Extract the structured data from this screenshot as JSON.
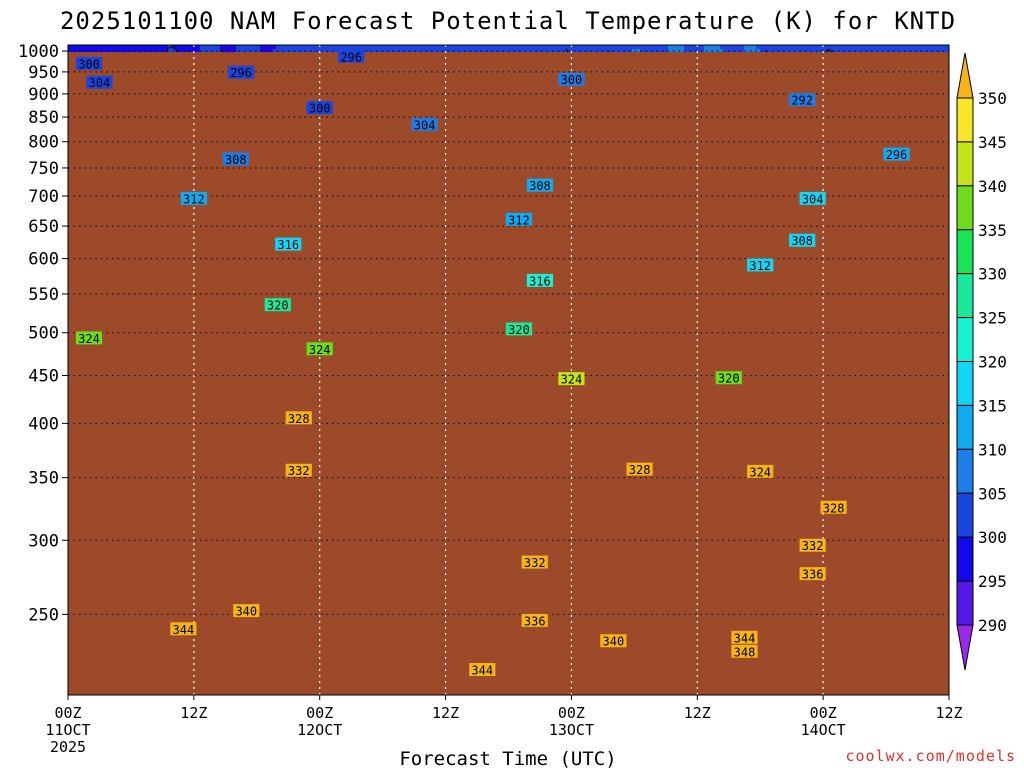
{
  "chart_data": {
    "type": "heatmap",
    "title": "2025101100 NAM Forecast Potential Temperature (K) for KNTD",
    "xlabel": "Forecast Time (UTC)",
    "ylabel": "",
    "units": "K",
    "y_scale": "log-pressure",
    "y_ticks": [
      250,
      300,
      350,
      400,
      450,
      500,
      550,
      600,
      650,
      700,
      750,
      800,
      850,
      900,
      950,
      1000
    ],
    "y_range": [
      1015,
      205
    ],
    "x_range": [
      0,
      84
    ],
    "x_ticks": [
      {
        "x": 0,
        "label": [
          "00Z",
          "11OCT",
          "2025"
        ]
      },
      {
        "x": 12,
        "label": [
          "12Z"
        ]
      },
      {
        "x": 24,
        "label": [
          "00Z",
          "12OCT"
        ]
      },
      {
        "x": 36,
        "label": [
          "12Z"
        ]
      },
      {
        "x": 48,
        "label": [
          "00Z",
          "13OCT"
        ]
      },
      {
        "x": 60,
        "label": [
          "12Z"
        ]
      },
      {
        "x": 72,
        "label": [
          "00Z",
          "14OCT"
        ]
      },
      {
        "x": 84,
        "label": [
          "12Z"
        ]
      }
    ],
    "grid": true,
    "colorbar": {
      "labels": [
        "290",
        "295",
        "300",
        "305",
        "310",
        "315",
        "320",
        "325",
        "330",
        "335",
        "340",
        "345",
        "350"
      ],
      "colors": [
        "#9a2ae8",
        "#5419e6",
        "#1208ea",
        "#1a45e0",
        "#1e7ee8",
        "#10aaf0",
        "#12d6f6",
        "#1af0d2",
        "#1ae89a",
        "#18e455",
        "#6cdc1c",
        "#c4e418",
        "#f8e628",
        "#f7b418"
      ]
    },
    "contour_levels": [
      292,
      296,
      300,
      304,
      308,
      312,
      316,
      320,
      324,
      328,
      332,
      336,
      340,
      344,
      348
    ],
    "contour_labels": [
      {
        "text": "344",
        "t": 39.5,
        "p": 218
      },
      {
        "text": "348",
        "t": 64.5,
        "p": 228
      },
      {
        "text": "344",
        "t": 64.5,
        "p": 236
      },
      {
        "text": "344",
        "t": 11,
        "p": 241
      },
      {
        "text": "340",
        "t": 17,
        "p": 252
      },
      {
        "text": "340",
        "t": 52,
        "p": 234
      },
      {
        "text": "336",
        "t": 44.5,
        "p": 246
      },
      {
        "text": "336",
        "t": 71,
        "p": 276
      },
      {
        "text": "332",
        "t": 44.5,
        "p": 284
      },
      {
        "text": "332",
        "t": 71,
        "p": 296
      },
      {
        "text": "328",
        "t": 73,
        "p": 325
      },
      {
        "text": "324",
        "t": 66,
        "p": 355
      },
      {
        "text": "332",
        "t": 22,
        "p": 356
      },
      {
        "text": "328",
        "t": 54.5,
        "p": 357
      },
      {
        "text": "328",
        "t": 22,
        "p": 405
      },
      {
        "text": "324",
        "t": 48,
        "p": 446
      },
      {
        "text": "320",
        "t": 63,
        "p": 447
      },
      {
        "text": "324",
        "t": 24,
        "p": 480
      },
      {
        "text": "324",
        "t": 2,
        "p": 493
      },
      {
        "text": "320",
        "t": 43,
        "p": 504
      },
      {
        "text": "320",
        "t": 20,
        "p": 535
      },
      {
        "text": "316",
        "t": 45,
        "p": 568
      },
      {
        "text": "312",
        "t": 66,
        "p": 590
      },
      {
        "text": "316",
        "t": 21,
        "p": 621
      },
      {
        "text": "308",
        "t": 70,
        "p": 627
      },
      {
        "text": "312",
        "t": 43,
        "p": 660
      },
      {
        "text": "312",
        "t": 12,
        "p": 695
      },
      {
        "text": "304",
        "t": 71,
        "p": 695
      },
      {
        "text": "308",
        "t": 45,
        "p": 718
      },
      {
        "text": "308",
        "t": 16,
        "p": 766
      },
      {
        "text": "296",
        "t": 79,
        "p": 775
      },
      {
        "text": "304",
        "t": 34,
        "p": 834
      },
      {
        "text": "300",
        "t": 24,
        "p": 869
      },
      {
        "text": "292",
        "t": 70,
        "p": 886
      },
      {
        "text": "304",
        "t": 3,
        "p": 925
      },
      {
        "text": "300",
        "t": 48,
        "p": 932
      },
      {
        "text": "296",
        "t": 16.5,
        "p": 948
      },
      {
        "text": "300",
        "t": 2,
        "p": 969
      },
      {
        "text": "296",
        "t": 27,
        "p": 986
      }
    ],
    "ground_color": "#9c4a2a"
  },
  "credit": "coolwx.com/models"
}
